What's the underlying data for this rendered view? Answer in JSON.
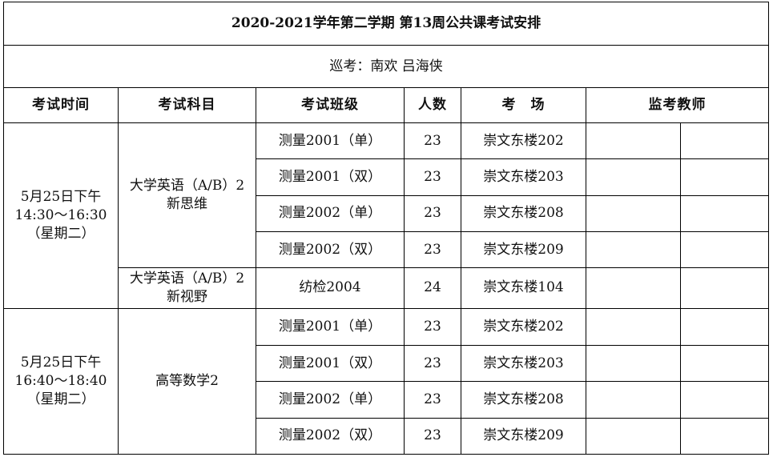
{
  "title": "2020-2021学年第二学期 第13周公共课考试安排",
  "inspectors": "巡考：南欢 吕海侠",
  "headers": {
    "time": "考试时间",
    "subject": "考试科目",
    "class": "考试班级",
    "count": "人数",
    "room": "考　场",
    "proctor": "监考教师"
  },
  "sessions": [
    {
      "time_line1": "5月25日下午",
      "time_line2": "14:30～16:30",
      "time_line3": "（星期二）",
      "subjects": [
        {
          "line1": "大学英语（A/B）2",
          "line2": "新思维",
          "rows": [
            {
              "class": "测量2001（单）",
              "count": "23",
              "room": "崇文东楼202",
              "proctor1": "",
              "proctor2": ""
            },
            {
              "class": "测量2001（双）",
              "count": "23",
              "room": "崇文东楼203",
              "proctor1": "",
              "proctor2": ""
            },
            {
              "class": "测量2002（单）",
              "count": "23",
              "room": "崇文东楼208",
              "proctor1": "",
              "proctor2": ""
            },
            {
              "class": "测量2002（双）",
              "count": "23",
              "room": "崇文东楼209",
              "proctor1": "",
              "proctor2": ""
            }
          ]
        },
        {
          "line1": "大学英语（A/B）2",
          "line2": "新视野",
          "rows": [
            {
              "class": "纺检2004",
              "count": "24",
              "room": "崇文东楼104",
              "proctor1": "",
              "proctor2": ""
            }
          ]
        }
      ]
    },
    {
      "time_line1": "5月25日下午",
      "time_line2": "16:40～18:40",
      "time_line3": "（星期二）",
      "subjects": [
        {
          "line1": "高等数学2",
          "line2": "",
          "rows": [
            {
              "class": "测量2001（单）",
              "count": "23",
              "room": "崇文东楼202",
              "proctor1": "",
              "proctor2": ""
            },
            {
              "class": "测量2001（双）",
              "count": "23",
              "room": "崇文东楼203",
              "proctor1": "",
              "proctor2": ""
            },
            {
              "class": "测量2002（单）",
              "count": "23",
              "room": "崇文东楼208",
              "proctor1": "",
              "proctor2": ""
            },
            {
              "class": "测量2002（双）",
              "count": "23",
              "room": "崇文东楼209",
              "proctor1": "",
              "proctor2": ""
            }
          ]
        }
      ]
    }
  ]
}
